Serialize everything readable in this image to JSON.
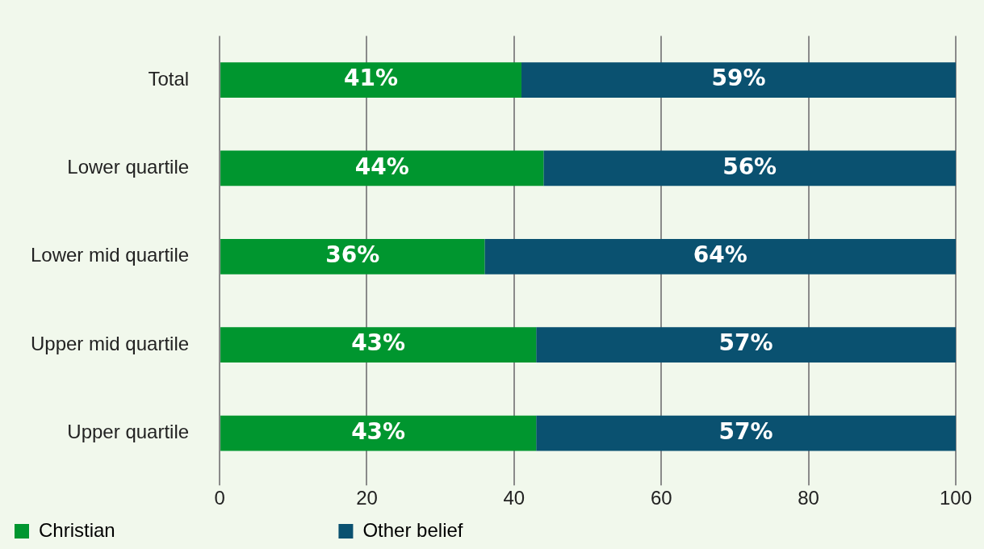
{
  "chart_data": {
    "type": "bar",
    "orientation": "horizontal",
    "stacked": true,
    "categories": [
      "Total",
      "Lower quartile",
      "Lower mid quartile",
      "Upper mid quartile",
      "Upper quartile"
    ],
    "series": [
      {
        "name": "Christian",
        "color": "#00962f",
        "values": [
          41,
          44,
          36,
          43,
          43
        ],
        "value_labels": [
          "41%",
          "44%",
          "36%",
          "43%",
          "43%"
        ]
      },
      {
        "name": "Other belief",
        "color": "#0a5170",
        "values": [
          59,
          56,
          64,
          57,
          57
        ],
        "value_labels": [
          "59%",
          "56%",
          "64%",
          "57%",
          "57%"
        ]
      }
    ],
    "xlim": [
      0,
      100
    ],
    "xticks": [
      0,
      20,
      40,
      60,
      80,
      100
    ],
    "grid": "x",
    "legend": "bottom"
  }
}
